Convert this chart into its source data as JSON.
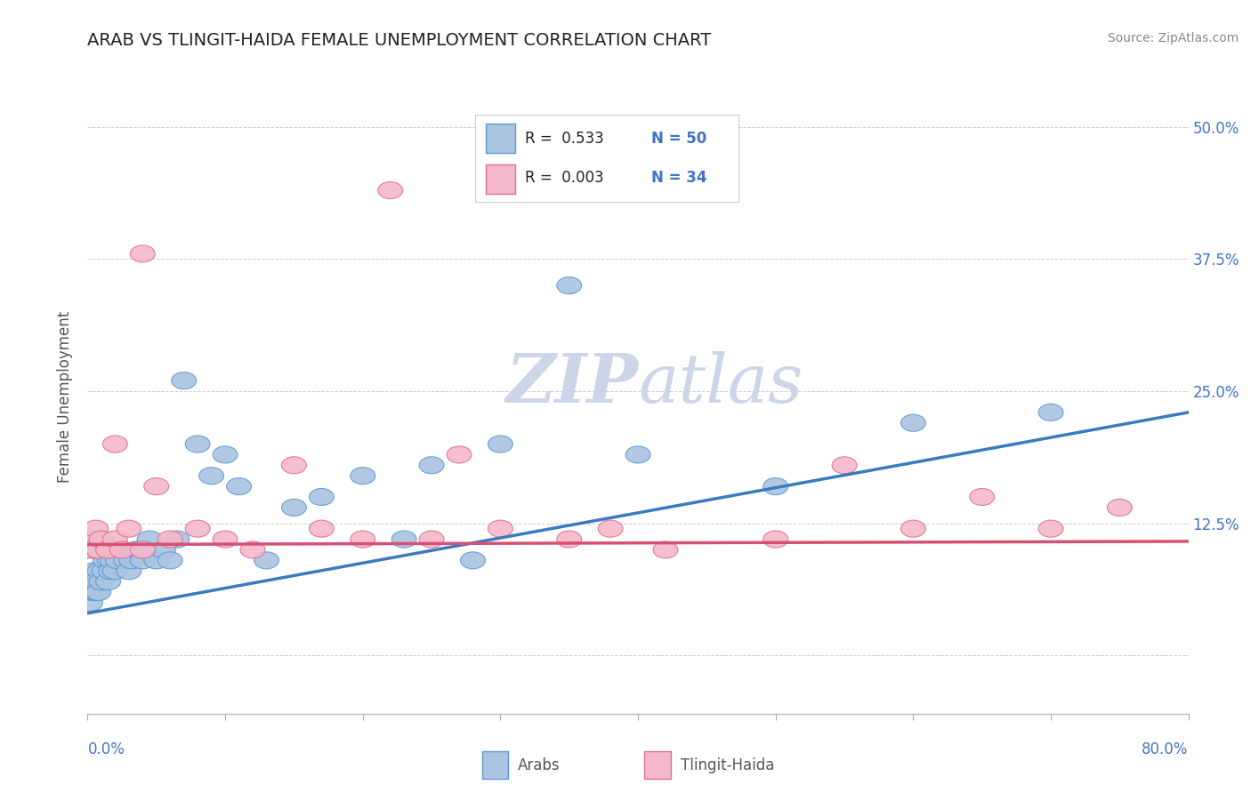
{
  "title": "ARAB VS TLINGIT-HAIDA FEMALE UNEMPLOYMENT CORRELATION CHART",
  "source": "Source: ZipAtlas.com",
  "ylabel": "Female Unemployment",
  "ytick_labels": [
    "",
    "12.5%",
    "25.0%",
    "37.5%",
    "50.0%"
  ],
  "ytick_values": [
    0.0,
    0.125,
    0.25,
    0.375,
    0.5
  ],
  "xlim": [
    0.0,
    0.8
  ],
  "ylim": [
    -0.055,
    0.545
  ],
  "plot_ylim": [
    0.0,
    0.5
  ],
  "arab_R": "0.533",
  "arab_N": "50",
  "tlingit_R": "0.003",
  "tlingit_N": "34",
  "arab_color": "#aac4e2",
  "arab_edge_color": "#5b9bd5",
  "arab_line_color": "#3a7bbf",
  "tlingit_color": "#f4b8cb",
  "tlingit_edge_color": "#e07090",
  "tlingit_line_color": "#d94f72",
  "watermark_color": "#ccd6e8",
  "background_color": "#ffffff",
  "grid_color": "#cccccc",
  "title_color": "#222222",
  "label_color": "#4472c4",
  "text_color": "#555555",
  "legend_text_color": "#222222",
  "arab_line_x": [
    0.0,
    0.8
  ],
  "arab_line_y": [
    0.04,
    0.23
  ],
  "tlingit_line_x": [
    0.0,
    0.8
  ],
  "tlingit_line_y": [
    0.105,
    0.108
  ],
  "arab_x": [
    0.0,
    0.002,
    0.003,
    0.004,
    0.005,
    0.006,
    0.007,
    0.008,
    0.009,
    0.01,
    0.012,
    0.013,
    0.015,
    0.016,
    0.017,
    0.018,
    0.019,
    0.02,
    0.022,
    0.025,
    0.028,
    0.03,
    0.032,
    0.035,
    0.038,
    0.04,
    0.042,
    0.045,
    0.05,
    0.055,
    0.06,
    0.065,
    0.07,
    0.08,
    0.09,
    0.1,
    0.11,
    0.13,
    0.15,
    0.17,
    0.2,
    0.23,
    0.25,
    0.28,
    0.3,
    0.35,
    0.4,
    0.5,
    0.6,
    0.7
  ],
  "arab_y": [
    0.06,
    0.05,
    0.07,
    0.06,
    0.08,
    0.06,
    0.07,
    0.06,
    0.08,
    0.07,
    0.08,
    0.09,
    0.07,
    0.09,
    0.08,
    0.09,
    0.1,
    0.08,
    0.09,
    0.1,
    0.09,
    0.08,
    0.09,
    0.1,
    0.1,
    0.09,
    0.1,
    0.11,
    0.09,
    0.1,
    0.09,
    0.11,
    0.26,
    0.2,
    0.17,
    0.19,
    0.16,
    0.09,
    0.14,
    0.15,
    0.17,
    0.11,
    0.18,
    0.09,
    0.2,
    0.35,
    0.19,
    0.16,
    0.22,
    0.23
  ],
  "tlingit_x": [
    0.0,
    0.002,
    0.004,
    0.006,
    0.008,
    0.01,
    0.015,
    0.02,
    0.025,
    0.03,
    0.04,
    0.05,
    0.06,
    0.08,
    0.1,
    0.12,
    0.15,
    0.17,
    0.2,
    0.22,
    0.25,
    0.27,
    0.3,
    0.35,
    0.38,
    0.42,
    0.5,
    0.55,
    0.6,
    0.65,
    0.7,
    0.75,
    0.04,
    0.02
  ],
  "tlingit_y": [
    0.1,
    0.11,
    0.1,
    0.12,
    0.1,
    0.11,
    0.1,
    0.11,
    0.1,
    0.12,
    0.1,
    0.16,
    0.11,
    0.12,
    0.11,
    0.1,
    0.18,
    0.12,
    0.11,
    0.44,
    0.11,
    0.19,
    0.12,
    0.11,
    0.12,
    0.1,
    0.11,
    0.18,
    0.12,
    0.15,
    0.12,
    0.14,
    0.38,
    0.2
  ]
}
